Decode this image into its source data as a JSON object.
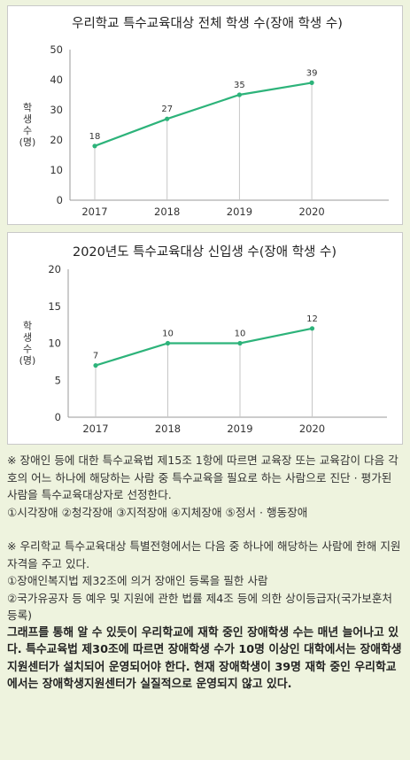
{
  "chart_data": [
    {
      "type": "line",
      "title": "우리학교 특수교육대상 전체 학생 수(장애 학생 수)",
      "ylabel": "학생수(명)",
      "x": [
        "2017",
        "2018",
        "2019",
        "2020"
      ],
      "values": [
        18,
        27,
        35,
        39
      ],
      "ylim": [
        0,
        50
      ],
      "yticks": [
        "0",
        "10",
        "20",
        "30",
        "40",
        "50"
      ],
      "line_color": "#2db37a",
      "grid": false
    },
    {
      "type": "line",
      "title": "2020년도 특수교육대상 신입생 수(장애 학생 수)",
      "ylabel": "학생수(명)",
      "x": [
        "2017",
        "2018",
        "2019",
        "2020"
      ],
      "values": [
        7,
        10,
        10,
        12
      ],
      "ylim": [
        0,
        20
      ],
      "yticks": [
        "0",
        "5",
        "10",
        "15",
        "20"
      ],
      "line_color": "#2db37a",
      "grid": false
    }
  ],
  "notes": {
    "note1": "※ 장애인 등에 대한 특수교육법 제15조 1항에 따르면 교육장 또는 교육감이 다음 각 호의 어느 하나에 해당하는 사람 중 특수교육을 필요로 하는 사람으로 진단 · 평가된 사람을 특수교육대상자로 선정한다.",
    "note1_list": "①시각장애 ②청각장애 ③지적장애 ④지체장애 ⑤정서 · 행동장애",
    "note2": "※ 우리학교 특수교육대상 특별전형에서는 다음 중 하나에 해당하는 사람에 한해 지원 자격을 주고 있다.",
    "note2_item1": "①장애인복지법 제32조에 의거 장애인 등록을 필한 사람",
    "note2_item2": "②국가유공자 등 예우 및 지원에 관한 법률 제4조 등에 의한 상이등급자(국가보훈처 등록)",
    "summary": "그래프를 통해 알 수 있듯이 우리학교에 재학 중인 장애학생 수는 매년 늘어나고 있다. 특수교육법 제30조에 따르면 장애학생 수가 10명 이상인 대학에서는 장애학생지원센터가 설치되어 운영되어야 한다. 현재 장애학생이 39명 재학 중인 우리학교에서는 장애학생지원센터가 실질적으로 운영되지 않고 있다."
  }
}
